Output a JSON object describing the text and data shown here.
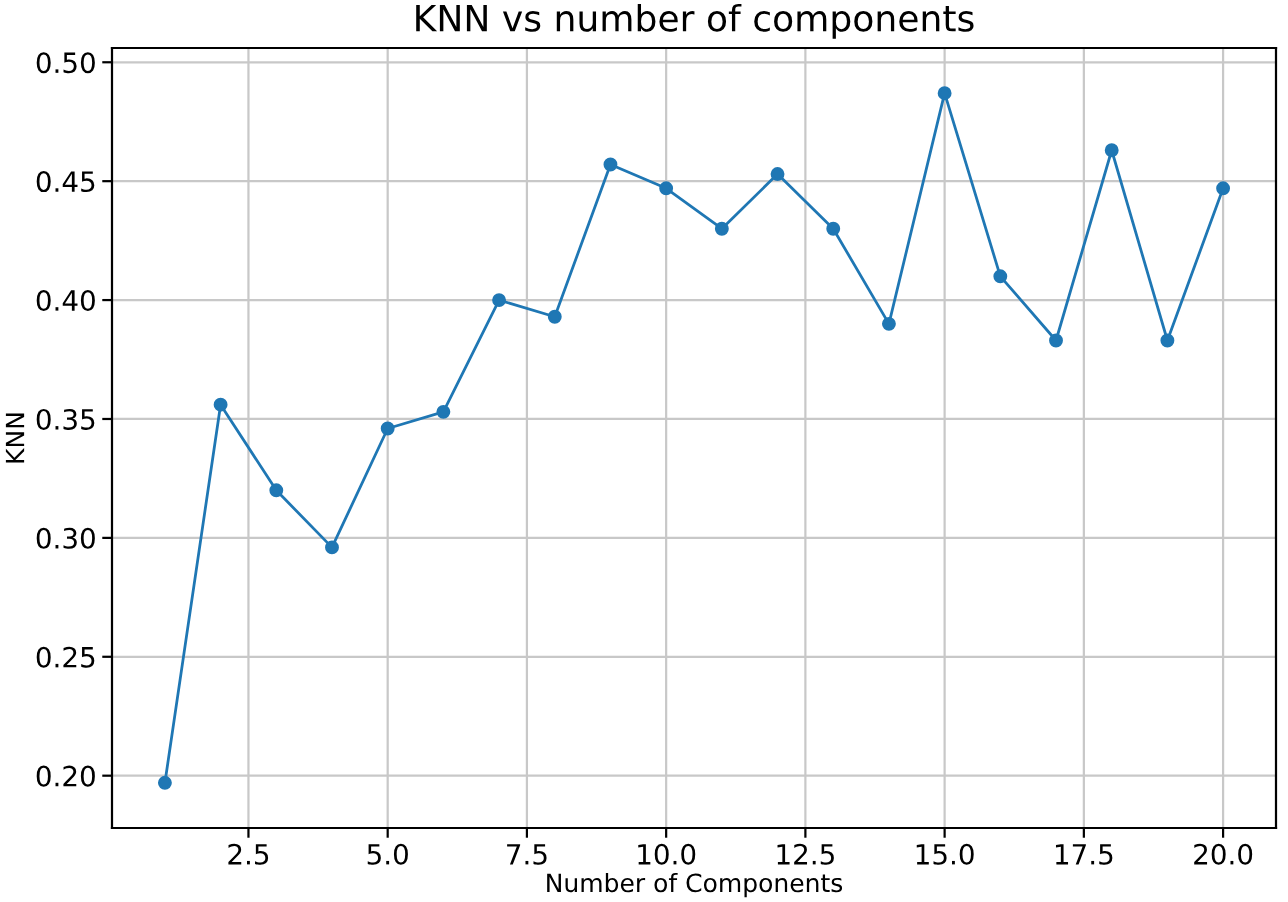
{
  "chart_data": {
    "type": "line",
    "title": "KNN vs number of components",
    "xlabel": "Number of Components",
    "ylabel": "KNN",
    "x": [
      1,
      2,
      3,
      4,
      5,
      6,
      7,
      8,
      9,
      10,
      11,
      12,
      13,
      14,
      15,
      16,
      17,
      18,
      19,
      20
    ],
    "series": [
      {
        "color": "#1f77b4",
        "values": [
          0.197,
          0.356,
          0.32,
          0.296,
          0.346,
          0.353,
          0.4,
          0.393,
          0.457,
          0.447,
          0.43,
          0.453,
          0.43,
          0.39,
          0.487,
          0.41,
          0.383,
          0.463,
          0.383,
          0.447
        ]
      }
    ],
    "xlim": [
      0.05,
      20.95
    ],
    "ylim": [
      0.178,
      0.506
    ],
    "xticks": [
      {
        "value": 2.5,
        "label": "2.5"
      },
      {
        "value": 5,
        "label": "5.0"
      },
      {
        "value": 7.5,
        "label": "7.5"
      },
      {
        "value": 10,
        "label": "10.0"
      },
      {
        "value": 12.5,
        "label": "12.5"
      },
      {
        "value": 15,
        "label": "15.0"
      },
      {
        "value": 17.5,
        "label": "17.5"
      },
      {
        "value": 20,
        "label": "20.0"
      }
    ],
    "yticks": [
      {
        "value": 0.2,
        "label": "0.20"
      },
      {
        "value": 0.25,
        "label": "0.25"
      },
      {
        "value": 0.3,
        "label": "0.30"
      },
      {
        "value": 0.35,
        "label": "0.35"
      },
      {
        "value": 0.4,
        "label": "0.40"
      },
      {
        "value": 0.45,
        "label": "0.45"
      },
      {
        "value": 0.5,
        "label": "0.50"
      }
    ],
    "grid": true,
    "marker": "circle",
    "line_style": "solid"
  }
}
